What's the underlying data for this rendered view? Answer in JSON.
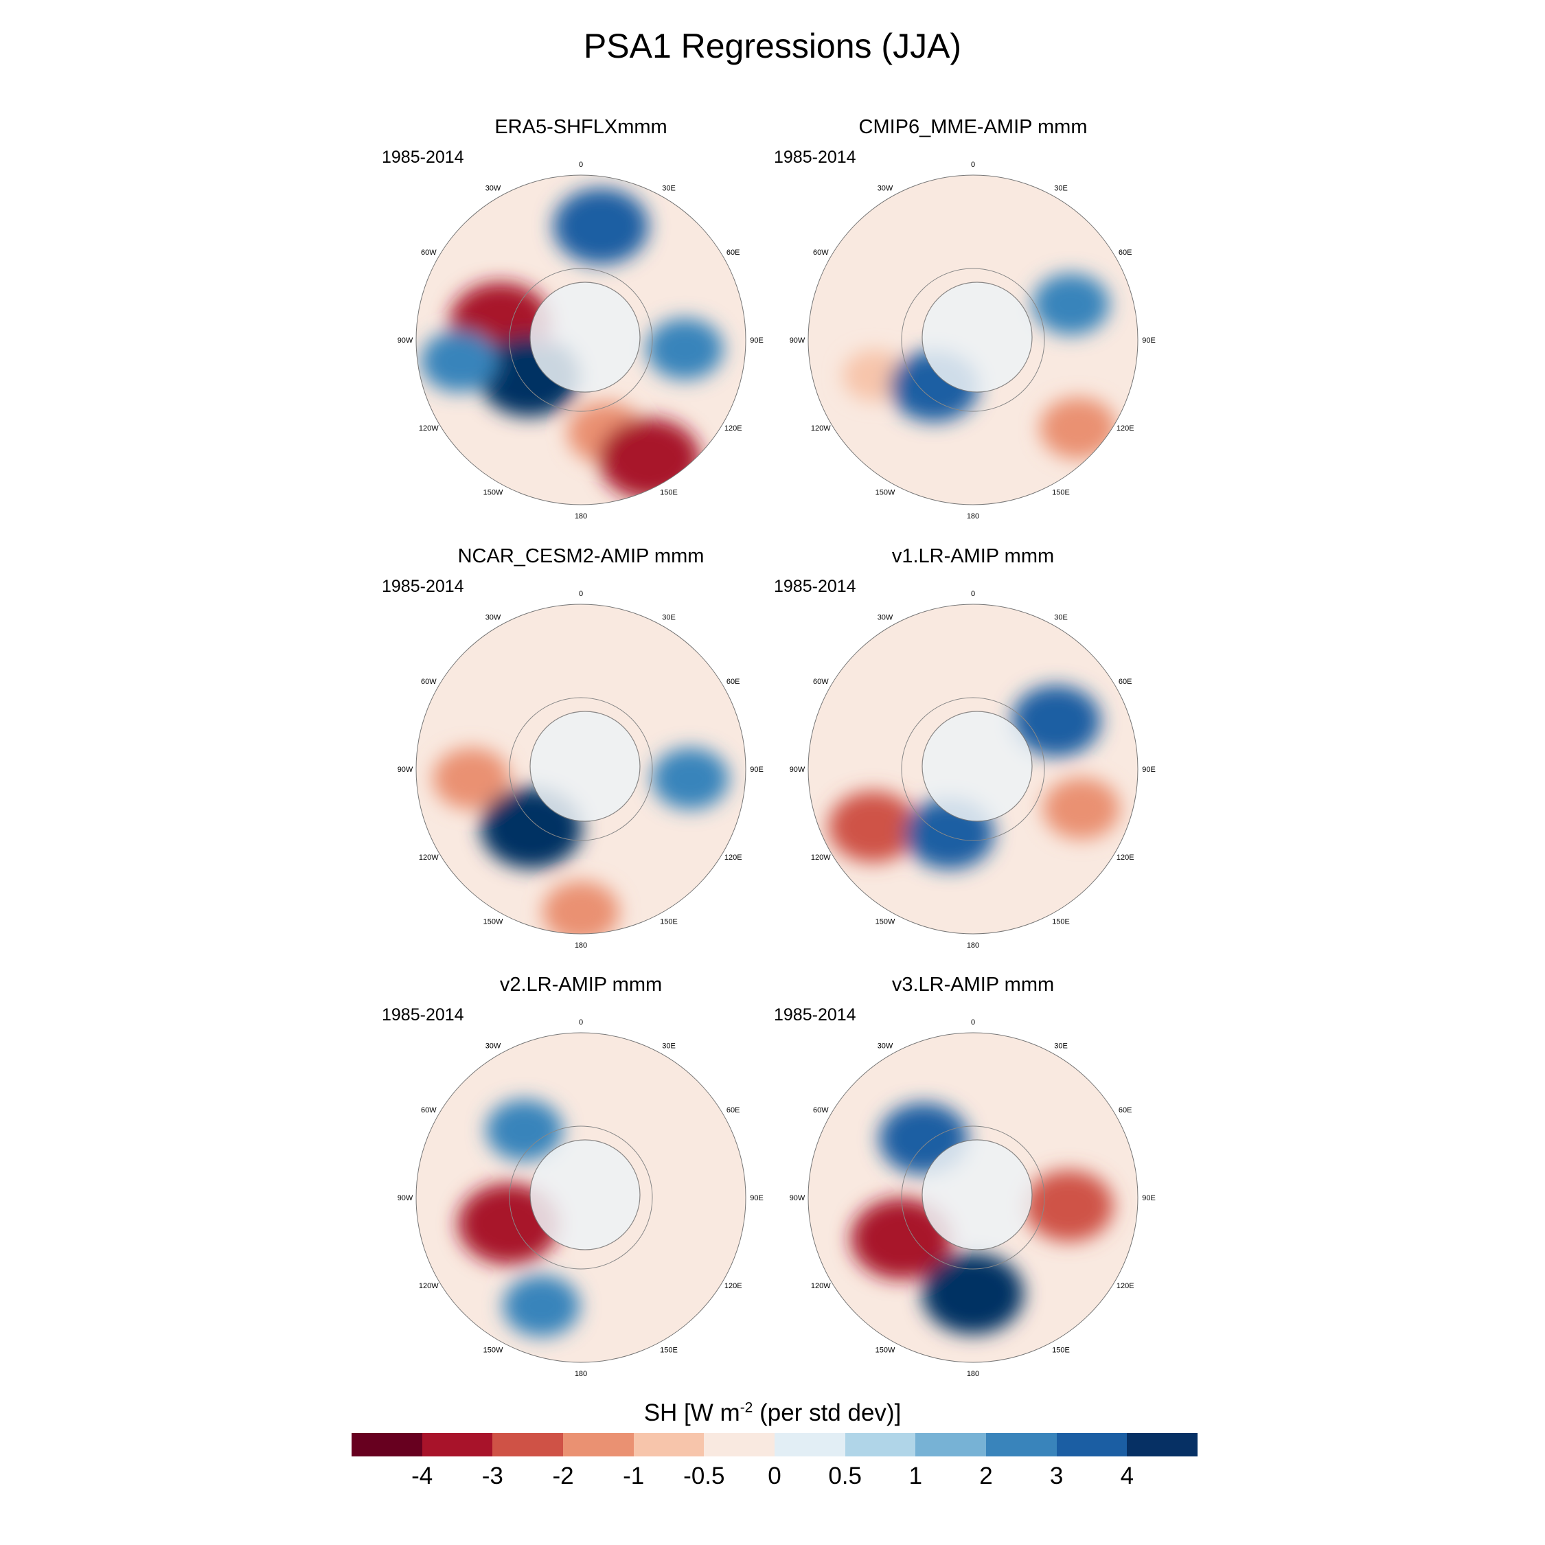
{
  "title": "PSA1 Regressions (JJA)",
  "panels": [
    {
      "id": "p0",
      "title": "ERA5-SHFLXmmm",
      "period": "1985-2014"
    },
    {
      "id": "p1",
      "title": "CMIP6_MME-AMIP  mmm",
      "period": "1985-2014"
    },
    {
      "id": "p2",
      "title": "NCAR_CESM2-AMIP  mmm",
      "period": "1985-2014"
    },
    {
      "id": "p3",
      "title": "v1.LR-AMIP  mmm",
      "period": "1985-2014"
    },
    {
      "id": "p4",
      "title": "v2.LR-AMIP  mmm",
      "period": "1985-2014"
    },
    {
      "id": "p5",
      "title": "v3.LR-AMIP  mmm",
      "period": "1985-2014"
    }
  ],
  "lon_labels": [
    "0",
    "30E",
    "60E",
    "90E",
    "120E",
    "150E",
    "180",
    "150W",
    "120W",
    "90W",
    "60W",
    "30W"
  ],
  "colorbar": {
    "title_main": "SH [W m",
    "title_sup": "-2",
    "title_tail": " (per std dev)]",
    "colors": [
      "#67001f",
      "#a8132a",
      "#cf5246",
      "#ea9172",
      "#f7c5ab",
      "#f9e9e0",
      "#e2eef5",
      "#b0d5e8",
      "#77b2d5",
      "#3984bb",
      "#1b5ea3",
      "#063064"
    ],
    "ticks": [
      "-4",
      "-3",
      "-2",
      "-1",
      "-0.5",
      "0",
      "0.5",
      "1",
      "2",
      "3",
      "4"
    ]
  },
  "chart_data": {
    "type": "heatmap",
    "title": "PSA1 Regressions (JJA)",
    "projection": "south polar stereographic",
    "variable": "SH [W m-2 (per std dev)]",
    "levels": [
      -4,
      -3,
      -2,
      -1,
      -0.5,
      0,
      0.5,
      1,
      2,
      3,
      4
    ],
    "panels": [
      {
        "name": "ERA5-SHFLXmmm",
        "period": "1985-2014",
        "anomalies": [
          {
            "lon": 10,
            "lat": -48,
            "value": 3.5
          },
          {
            "lon": -78,
            "lat": -60,
            "value": -4
          },
          {
            "lon": -125,
            "lat": -67,
            "value": 4
          },
          {
            "lon": 95,
            "lat": -52,
            "value": 2
          },
          {
            "lon": 165,
            "lat": -55,
            "value": -2
          },
          {
            "lon": 150,
            "lat": -40,
            "value": -4
          },
          {
            "lon": -100,
            "lat": -45,
            "value": 2
          }
        ]
      },
      {
        "name": "CMIP6_MME-AMIP  mmm",
        "period": "1985-2014",
        "anomalies": [
          {
            "lon": 70,
            "lat": -52,
            "value": 2
          },
          {
            "lon": 130,
            "lat": -40,
            "value": -2
          },
          {
            "lon": -110,
            "lat": -52,
            "value": -1
          },
          {
            "lon": -140,
            "lat": -68,
            "value": 3
          }
        ]
      },
      {
        "name": "NCAR_CESM2-AMIP  mmm",
        "period": "1985-2014",
        "anomalies": [
          {
            "lon": -95,
            "lat": -50,
            "value": -2
          },
          {
            "lon": -140,
            "lat": -62,
            "value": 4
          },
          {
            "lon": 95,
            "lat": -50,
            "value": 2
          },
          {
            "lon": 180,
            "lat": -38,
            "value": -2
          }
        ]
      },
      {
        "name": "v1.LR-AMIP  mmm",
        "period": "1985-2014",
        "anomalies": [
          {
            "lon": -120,
            "lat": -48,
            "value": -3
          },
          {
            "lon": -160,
            "lat": -65,
            "value": 3
          },
          {
            "lon": 60,
            "lat": -55,
            "value": 3
          },
          {
            "lon": 110,
            "lat": -48,
            "value": -2
          }
        ]
      },
      {
        "name": "v2.LR-AMIP  mmm",
        "period": "1985-2014",
        "anomalies": [
          {
            "lon": -110,
            "lat": -62,
            "value": -4
          },
          {
            "lon": -40,
            "lat": -58,
            "value": 2
          },
          {
            "lon": -160,
            "lat": -48,
            "value": 2
          }
        ]
      },
      {
        "name": "v3.LR-AMIP  mmm",
        "period": "1985-2014",
        "anomalies": [
          {
            "lon": -120,
            "lat": -60,
            "value": -4
          },
          {
            "lon": -40,
            "lat": -62,
            "value": 3
          },
          {
            "lon": 180,
            "lat": -55,
            "value": 4
          },
          {
            "lon": 95,
            "lat": -55,
            "value": -3
          }
        ]
      }
    ]
  }
}
